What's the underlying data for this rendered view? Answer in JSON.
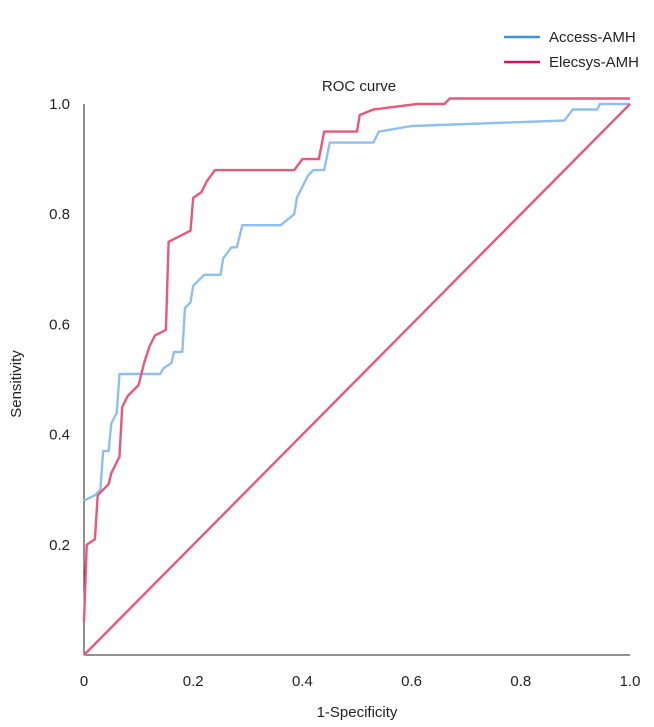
{
  "chart_data": {
    "type": "line",
    "title": "ROC curve",
    "xlabel": "1-Specificity",
    "ylabel": "Sensitivity",
    "xlim": [
      0,
      1.0
    ],
    "ylim": [
      0,
      1.0
    ],
    "xticks": [
      {
        "value": 0,
        "label": "0"
      },
      {
        "value": 0.2,
        "label": "0.2"
      },
      {
        "value": 0.4,
        "label": "0.4"
      },
      {
        "value": 0.6,
        "label": "0.6"
      },
      {
        "value": 0.8,
        "label": "0.8"
      },
      {
        "value": 1.0,
        "label": "1.0"
      }
    ],
    "yticks": [
      {
        "value": 0.2,
        "label": "0.2"
      },
      {
        "value": 0.4,
        "label": "0.4"
      },
      {
        "value": 0.6,
        "label": "0.6"
      },
      {
        "value": 0.8,
        "label": "0.8"
      },
      {
        "value": 1.0,
        "label": "1.0"
      }
    ],
    "grid": false,
    "legend_position": "top-right",
    "series": [
      {
        "name": "Access-AMH",
        "color": "#8fbfee",
        "legend_color": "#3c93d6",
        "points": [
          [
            0,
            0.28
          ],
          [
            0.02,
            0.29
          ],
          [
            0.03,
            0.3
          ],
          [
            0.035,
            0.37
          ],
          [
            0.045,
            0.37
          ],
          [
            0.05,
            0.42
          ],
          [
            0.06,
            0.44
          ],
          [
            0.065,
            0.51
          ],
          [
            0.14,
            0.51
          ],
          [
            0.145,
            0.52
          ],
          [
            0.16,
            0.53
          ],
          [
            0.165,
            0.55
          ],
          [
            0.18,
            0.55
          ],
          [
            0.185,
            0.63
          ],
          [
            0.195,
            0.64
          ],
          [
            0.2,
            0.67
          ],
          [
            0.22,
            0.69
          ],
          [
            0.25,
            0.69
          ],
          [
            0.255,
            0.72
          ],
          [
            0.27,
            0.74
          ],
          [
            0.28,
            0.74
          ],
          [
            0.29,
            0.78
          ],
          [
            0.36,
            0.78
          ],
          [
            0.385,
            0.8
          ],
          [
            0.39,
            0.83
          ],
          [
            0.4,
            0.85
          ],
          [
            0.41,
            0.87
          ],
          [
            0.42,
            0.88
          ],
          [
            0.44,
            0.88
          ],
          [
            0.45,
            0.93
          ],
          [
            0.53,
            0.93
          ],
          [
            0.54,
            0.95
          ],
          [
            0.6,
            0.96
          ],
          [
            0.88,
            0.97
          ],
          [
            0.895,
            0.99
          ],
          [
            0.94,
            0.99
          ],
          [
            0.945,
            1.0
          ],
          [
            1.0,
            1.0
          ]
        ]
      },
      {
        "name": "Elecsys-AMH",
        "color": "#e8587a",
        "legend_color": "#d6155d",
        "points": [
          [
            0,
            0.06
          ],
          [
            0.005,
            0.2
          ],
          [
            0.02,
            0.21
          ],
          [
            0.025,
            0.29
          ],
          [
            0.035,
            0.3
          ],
          [
            0.045,
            0.31
          ],
          [
            0.05,
            0.33
          ],
          [
            0.065,
            0.36
          ],
          [
            0.07,
            0.45
          ],
          [
            0.08,
            0.47
          ],
          [
            0.1,
            0.49
          ],
          [
            0.11,
            0.53
          ],
          [
            0.12,
            0.56
          ],
          [
            0.13,
            0.58
          ],
          [
            0.15,
            0.59
          ],
          [
            0.155,
            0.75
          ],
          [
            0.175,
            0.76
          ],
          [
            0.195,
            0.77
          ],
          [
            0.2,
            0.83
          ],
          [
            0.215,
            0.84
          ],
          [
            0.225,
            0.86
          ],
          [
            0.24,
            0.88
          ],
          [
            0.385,
            0.88
          ],
          [
            0.4,
            0.9
          ],
          [
            0.43,
            0.9
          ],
          [
            0.44,
            0.95
          ],
          [
            0.5,
            0.95
          ],
          [
            0.505,
            0.98
          ],
          [
            0.53,
            0.99
          ],
          [
            0.61,
            1.0
          ],
          [
            0.66,
            1.0
          ],
          [
            0.67,
            1.01
          ],
          [
            1.0,
            1.01
          ]
        ]
      },
      {
        "name": "",
        "color": "#e8587a",
        "points": [
          [
            0,
            0
          ],
          [
            1.0,
            1.0
          ]
        ]
      }
    ]
  }
}
